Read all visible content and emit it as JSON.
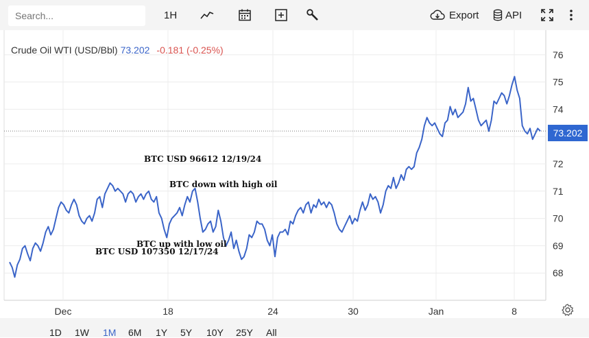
{
  "toolbar": {
    "search_placeholder": "Search...",
    "interval": "1H",
    "chart_type_icon": "line-chart-icon",
    "calendar_icon": "calendar-icon",
    "compare_icon": "add-compare-icon",
    "indicators_icon": "wrench-icon",
    "export_label": "Export",
    "api_label": "API",
    "fullscreen_icon": "fullscreen-icon",
    "more_icon": "more-vertical-icon"
  },
  "legend": {
    "symbol": "Crude Oil WTI (USD/Bbl)",
    "price": "73.202",
    "change": "-0.181 (-0.25%)"
  },
  "annotations": [
    {
      "text": "BTC USD 96612 12/19/24"
    },
    {
      "text": "BTC down with high oil"
    },
    {
      "text": "BTC up with low oil"
    },
    {
      "text": "BTC USD 107350 12/17/24"
    }
  ],
  "price_tag": "73.202",
  "ranges": [
    "1D",
    "1W",
    "1M",
    "6M",
    "1Y",
    "5Y",
    "10Y",
    "25Y",
    "All"
  ],
  "active_range": "1M",
  "colors": {
    "line": "#3a64c8",
    "up_tag": "#2f67d1",
    "negative": "#d9534f"
  },
  "chart_data": {
    "type": "line",
    "title": "",
    "xlabel": "",
    "ylabel": "",
    "x_ticks": [
      "Dec",
      "18",
      "24",
      "30",
      "Jan",
      "8"
    ],
    "y_ticks": [
      68,
      69,
      70,
      71,
      72,
      73,
      74,
      75,
      76
    ],
    "ylim": [
      67.0,
      76.9
    ],
    "grid": true,
    "last_value": 73.202,
    "series": [
      {
        "values": [
          68.4,
          68.2,
          67.85,
          68.3,
          68.5,
          68.9,
          69.0,
          68.7,
          68.45,
          68.9,
          69.1,
          69.0,
          68.8,
          69.1,
          69.5,
          69.7,
          69.4,
          69.6,
          70.0,
          70.4,
          70.6,
          70.5,
          70.3,
          70.2,
          70.5,
          70.7,
          70.5,
          70.1,
          69.9,
          69.8,
          70.0,
          70.1,
          69.9,
          70.2,
          70.7,
          70.8,
          70.4,
          70.9,
          71.1,
          71.3,
          71.2,
          71.0,
          71.1,
          71.0,
          70.9,
          70.6,
          70.9,
          71.0,
          70.9,
          70.6,
          70.8,
          70.9,
          70.7,
          70.9,
          71.0,
          70.7,
          70.6,
          70.8,
          70.2,
          70.0,
          69.6,
          69.3,
          69.8,
          70.0,
          70.1,
          70.2,
          70.4,
          70.1,
          70.5,
          70.8,
          70.6,
          71.0,
          71.1,
          70.6,
          70.0,
          69.5,
          69.6,
          69.8,
          69.9,
          69.5,
          69.7,
          70.3,
          69.9,
          69.3,
          69.0,
          69.2,
          69.5,
          68.9,
          69.2,
          68.8,
          68.5,
          68.6,
          68.9,
          69.4,
          69.3,
          69.5,
          69.9,
          69.8,
          69.8,
          69.6,
          69.2,
          69.0,
          69.4,
          68.6,
          69.3,
          69.5,
          69.5,
          69.6,
          69.4,
          69.9,
          69.8,
          70.1,
          70.3,
          70.4,
          70.2,
          70.5,
          70.6,
          70.2,
          70.5,
          70.4,
          70.7,
          70.5,
          70.6,
          70.4,
          70.6,
          70.5,
          70.2,
          69.8,
          69.6,
          69.5,
          69.7,
          69.9,
          70.1,
          69.8,
          70.0,
          69.9,
          70.3,
          70.6,
          70.3,
          70.5,
          70.9,
          70.7,
          70.8,
          70.6,
          70.2,
          70.5,
          71.0,
          71.2,
          71.1,
          71.5,
          71.1,
          71.3,
          71.6,
          71.4,
          71.8,
          71.9,
          71.8,
          71.9,
          72.4,
          72.6,
          72.9,
          73.4,
          73.7,
          73.5,
          73.4,
          73.5,
          73.3,
          73.1,
          73.0,
          73.5,
          73.6,
          74.1,
          73.8,
          74.0,
          73.7,
          73.8,
          73.9,
          74.2,
          74.8,
          74.3,
          74.4,
          74.0,
          73.6,
          73.4,
          73.5,
          73.6,
          73.2,
          73.6,
          74.3,
          74.2,
          74.4,
          74.6,
          74.5,
          74.2,
          74.5,
          74.9,
          75.2,
          74.7,
          74.4,
          73.4,
          73.2,
          73.1,
          73.3,
          72.9,
          73.1,
          73.3,
          73.202
        ]
      }
    ]
  }
}
